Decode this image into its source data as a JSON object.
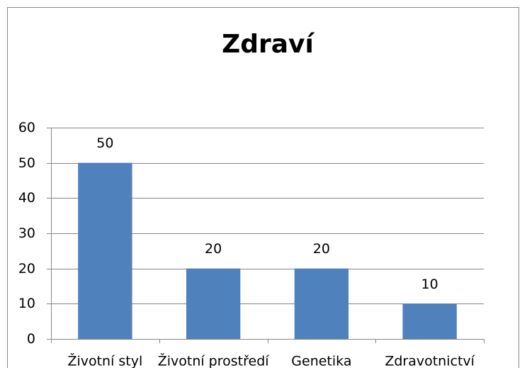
{
  "chart_data": {
    "type": "bar",
    "title": "Zdraví",
    "categories": [
      "Životní styl",
      "Životní prostředí",
      "Genetika",
      "Zdravotnictví"
    ],
    "values": [
      50,
      20,
      20,
      10
    ],
    "color": "#4f81bd",
    "ylim": [
      0,
      60
    ],
    "yticks": [
      0,
      10,
      20,
      30,
      40,
      50,
      60
    ],
    "grid": true
  }
}
